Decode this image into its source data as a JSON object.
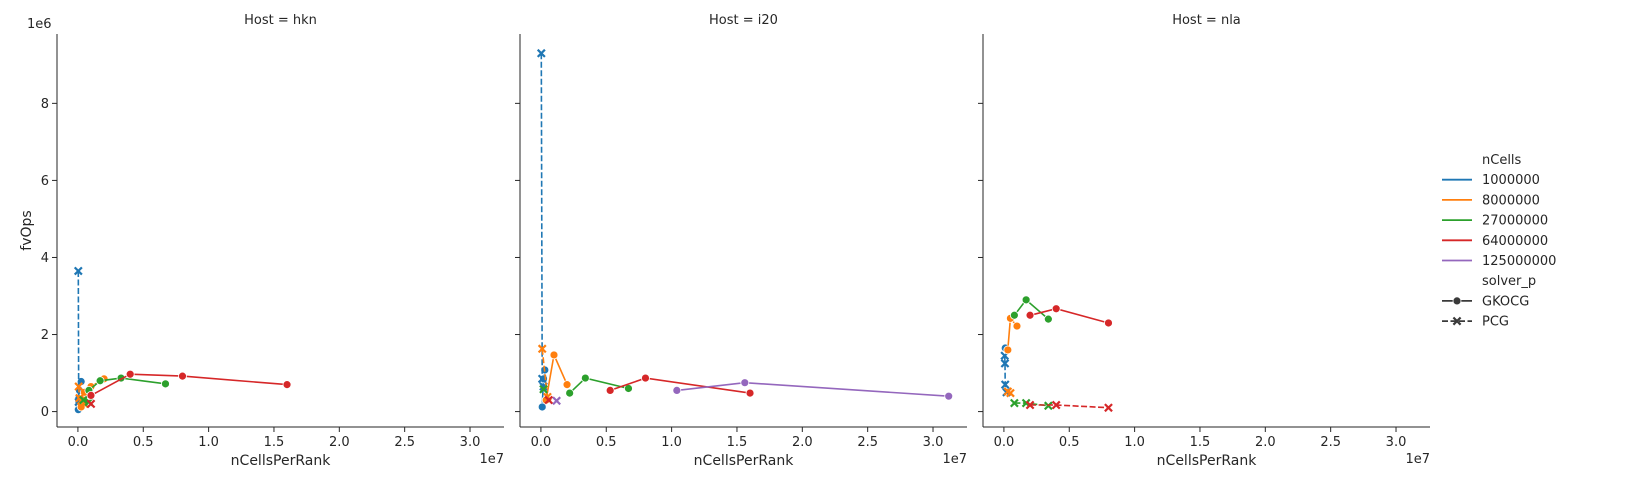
{
  "chart_data": {
    "type": "line",
    "facet_label": "Host",
    "xlabel": "nCellsPerRank",
    "ylabel": "fvOps",
    "x_offset_label": "1e7",
    "y_offset_label": "1e6",
    "x_scale": 10000000,
    "y_scale": 1000000,
    "xlim": [
      -0.16,
      3.26
    ],
    "ylim": [
      -0.4,
      9.8
    ],
    "x_ticks": [
      0,
      0.5,
      1.0,
      1.5,
      2.0,
      2.5,
      3.0
    ],
    "x_tick_labels": [
      "0.0",
      "0.5",
      "1.0",
      "1.5",
      "2.0",
      "2.5",
      "3.0"
    ],
    "y_ticks": [
      0,
      2,
      4,
      6,
      8
    ],
    "y_tick_labels": [
      "0",
      "2",
      "4",
      "6",
      "8"
    ],
    "grid": false,
    "legend": {
      "placement": "right",
      "hue_title": "nCells",
      "hue_entries": [
        {
          "label": "1000000",
          "color": "#1f77b4"
        },
        {
          "label": "8000000",
          "color": "#ff7f0e"
        },
        {
          "label": "27000000",
          "color": "#2ca02c"
        },
        {
          "label": "64000000",
          "color": "#d62728"
        },
        {
          "label": "125000000",
          "color": "#9467bd"
        }
      ],
      "style_title": "solver_p",
      "style_entries": [
        {
          "label": "GKOCG",
          "marker": "circle",
          "dash": "solid"
        },
        {
          "label": "PCG",
          "marker": "x",
          "dash": "dashed"
        }
      ]
    },
    "panels": [
      {
        "title": "Host = hkn",
        "series": [
          {
            "nCells": "1000000",
            "solver": "GKOCG",
            "color": "#1f77b4",
            "points": [
              [
                0.003,
                0.05
              ],
              [
                0.006,
                0.3
              ],
              [
                0.012,
                0.55
              ],
              [
                0.025,
                0.78
              ]
            ]
          },
          {
            "nCells": "1000000",
            "solver": "PCG",
            "color": "#1f77b4",
            "points": [
              [
                0.003,
                3.65
              ],
              [
                0.006,
                0.25
              ],
              [
                0.012,
                0.3
              ],
              [
                0.025,
                0.25
              ]
            ]
          },
          {
            "nCells": "8000000",
            "solver": "GKOCG",
            "color": "#ff7f0e",
            "points": [
              [
                0.025,
                0.12
              ],
              [
                0.05,
                0.5
              ],
              [
                0.1,
                0.65
              ],
              [
                0.2,
                0.85
              ]
            ]
          },
          {
            "nCells": "8000000",
            "solver": "PCG",
            "color": "#ff7f0e",
            "points": [
              [
                0.006,
                0.65
              ],
              [
                0.012,
                0.35
              ],
              [
                0.025,
                0.28
              ],
              [
                0.05,
                0.2
              ]
            ]
          },
          {
            "nCells": "27000000",
            "solver": "GKOCG",
            "color": "#2ca02c",
            "points": [
              [
                0.084,
                0.55
              ],
              [
                0.17,
                0.8
              ],
              [
                0.33,
                0.87
              ],
              [
                0.67,
                0.72
              ]
            ]
          },
          {
            "nCells": "27000000",
            "solver": "PCG",
            "color": "#2ca02c",
            "points": [
              [
                0.042,
                0.3
              ],
              [
                0.084,
                0.25
              ]
            ]
          },
          {
            "nCells": "64000000",
            "solver": "GKOCG",
            "color": "#d62728",
            "points": [
              [
                0.1,
                0.42
              ],
              [
                0.4,
                0.97
              ],
              [
                0.8,
                0.92
              ],
              [
                1.6,
                0.7
              ]
            ]
          },
          {
            "nCells": "64000000",
            "solver": "PCG",
            "color": "#d62728",
            "points": [
              [
                0.1,
                0.2
              ]
            ]
          }
        ]
      },
      {
        "title": "Host = i20",
        "series": [
          {
            "nCells": "1000000",
            "solver": "GKOCG",
            "color": "#1f77b4",
            "points": [
              [
                0.01,
                0.12
              ],
              [
                0.02,
                0.85
              ],
              [
                0.03,
                1.08
              ]
            ]
          },
          {
            "nCells": "1000000",
            "solver": "PCG",
            "color": "#1f77b4",
            "points": [
              [
                0.003,
                9.3
              ],
              [
                0.01,
                0.85
              ],
              [
                0.02,
                0.65
              ]
            ]
          },
          {
            "nCells": "8000000",
            "solver": "GKOCG",
            "color": "#ff7f0e",
            "points": [
              [
                0.04,
                0.3
              ],
              [
                0.1,
                1.47
              ],
              [
                0.2,
                0.7
              ]
            ]
          },
          {
            "nCells": "8000000",
            "solver": "PCG",
            "color": "#ff7f0e",
            "points": [
              [
                0.01,
                1.63
              ],
              [
                0.05,
                0.38
              ]
            ]
          },
          {
            "nCells": "27000000",
            "solver": "GKOCG",
            "color": "#2ca02c",
            "points": [
              [
                0.22,
                0.48
              ],
              [
                0.34,
                0.87
              ],
              [
                0.67,
                0.6
              ]
            ]
          },
          {
            "nCells": "27000000",
            "solver": "PCG",
            "color": "#2ca02c",
            "points": [
              [
                0.02,
                0.58
              ]
            ]
          },
          {
            "nCells": "64000000",
            "solver": "GKOCG",
            "color": "#d62728",
            "points": [
              [
                0.53,
                0.55
              ],
              [
                0.8,
                0.87
              ],
              [
                1.6,
                0.48
              ]
            ]
          },
          {
            "nCells": "64000000",
            "solver": "PCG",
            "color": "#d62728",
            "points": [
              [
                0.06,
                0.3
              ]
            ]
          },
          {
            "nCells": "125000000",
            "solver": "GKOCG",
            "color": "#9467bd",
            "points": [
              [
                1.04,
                0.55
              ],
              [
                1.56,
                0.75
              ],
              [
                3.12,
                0.4
              ]
            ]
          },
          {
            "nCells": "125000000",
            "solver": "PCG",
            "color": "#9467bd",
            "points": [
              [
                0.12,
                0.28
              ]
            ]
          }
        ]
      },
      {
        "title": "Host = nla",
        "series": [
          {
            "nCells": "1000000",
            "solver": "GKOCG",
            "color": "#1f77b4",
            "points": [
              [
                0.01,
                1.65
              ]
            ]
          },
          {
            "nCells": "1000000",
            "solver": "PCG",
            "color": "#1f77b4",
            "points": [
              [
                0.006,
                1.45
              ],
              [
                0.008,
                1.25
              ],
              [
                0.01,
                0.7
              ],
              [
                0.02,
                0.5
              ]
            ]
          },
          {
            "nCells": "8000000",
            "solver": "GKOCG",
            "color": "#ff7f0e",
            "points": [
              [
                0.03,
                1.6
              ],
              [
                0.05,
                2.42
              ],
              [
                0.1,
                2.22
              ]
            ]
          },
          {
            "nCells": "8000000",
            "solver": "PCG",
            "color": "#ff7f0e",
            "points": [
              [
                0.03,
                0.52
              ],
              [
                0.05,
                0.48
              ]
            ]
          },
          {
            "nCells": "27000000",
            "solver": "GKOCG",
            "color": "#2ca02c",
            "points": [
              [
                0.08,
                2.5
              ],
              [
                0.17,
                2.9
              ],
              [
                0.34,
                2.4
              ]
            ]
          },
          {
            "nCells": "27000000",
            "solver": "PCG",
            "color": "#2ca02c",
            "points": [
              [
                0.08,
                0.22
              ],
              [
                0.17,
                0.22
              ],
              [
                0.34,
                0.15
              ]
            ]
          },
          {
            "nCells": "64000000",
            "solver": "GKOCG",
            "color": "#d62728",
            "points": [
              [
                0.2,
                2.5
              ],
              [
                0.4,
                2.67
              ],
              [
                0.8,
                2.3
              ]
            ]
          },
          {
            "nCells": "64000000",
            "solver": "PCG",
            "color": "#d62728",
            "points": [
              [
                0.2,
                0.17
              ],
              [
                0.4,
                0.17
              ],
              [
                0.8,
                0.1
              ]
            ]
          }
        ]
      }
    ]
  }
}
